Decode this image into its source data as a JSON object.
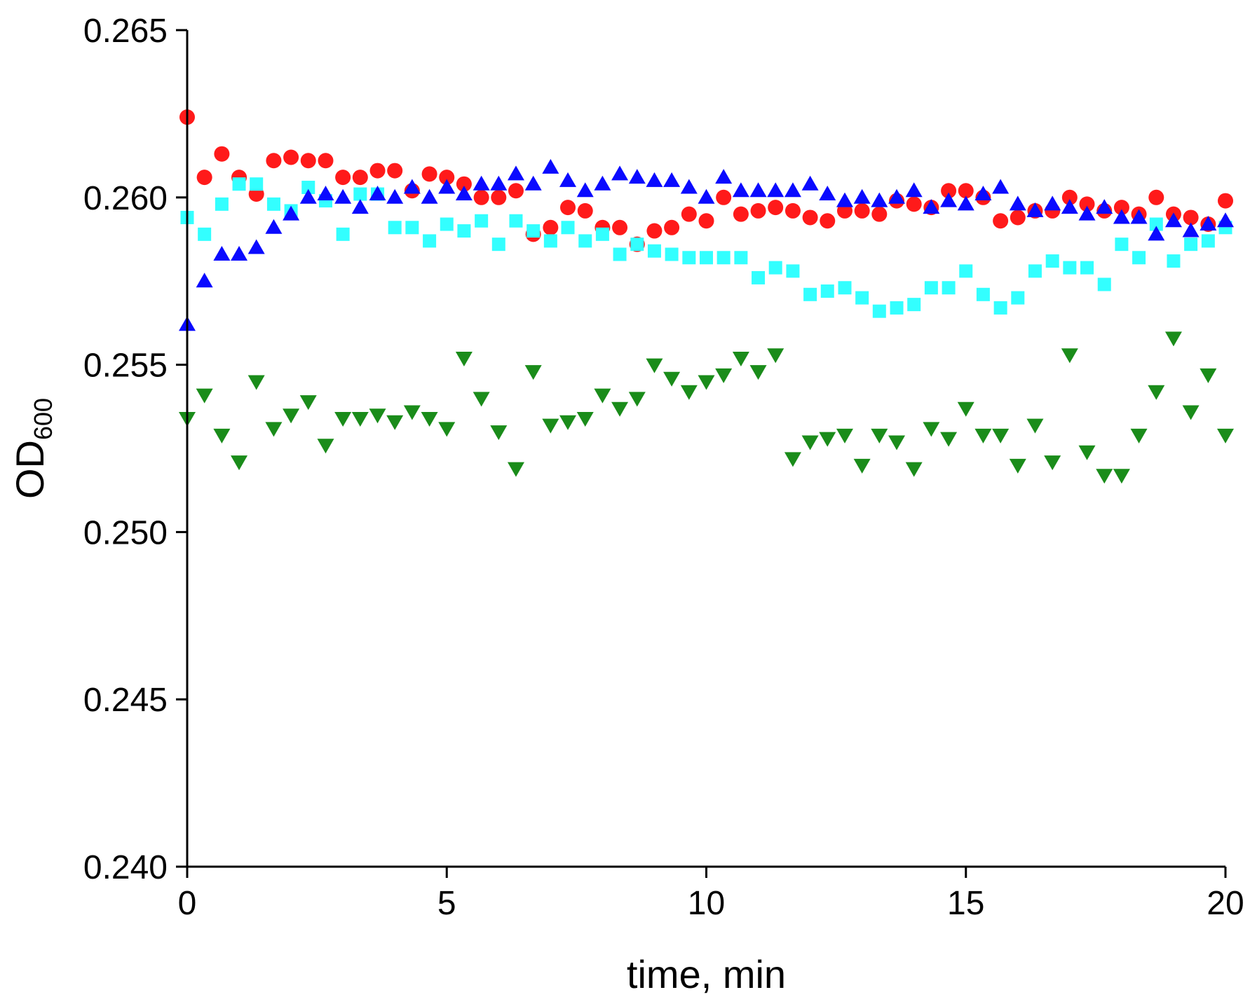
{
  "chart_data": {
    "type": "scatter",
    "title": "",
    "xlabel": "time, min",
    "ylabel": "OD",
    "ylabel_subscript": "600",
    "xlim": [
      0,
      20
    ],
    "ylim": [
      0.24,
      0.265
    ],
    "xticks": [
      0,
      5,
      10,
      15,
      20
    ],
    "xtick_labels": [
      "0",
      "5",
      "10",
      "15",
      "20"
    ],
    "yticks": [
      0.24,
      0.245,
      0.25,
      0.255,
      0.26,
      0.265
    ],
    "ytick_labels": [
      "0.240",
      "0.245",
      "0.250",
      "0.255",
      "0.260",
      "0.265"
    ],
    "grid": false,
    "legend": "none",
    "x": [
      0,
      0.333,
      0.667,
      1,
      1.333,
      1.667,
      2,
      2.333,
      2.667,
      3,
      3.333,
      3.667,
      4,
      4.333,
      4.667,
      5,
      5.333,
      5.667,
      6,
      6.333,
      6.667,
      7,
      7.333,
      7.667,
      8,
      8.333,
      8.667,
      9,
      9.333,
      9.667,
      10,
      10.333,
      10.667,
      11,
      11.333,
      11.667,
      12,
      12.333,
      12.667,
      13,
      13.333,
      13.667,
      14,
      14.333,
      14.667,
      15,
      15.333,
      15.667,
      16,
      16.333,
      16.667,
      17,
      17.333,
      17.667,
      18,
      18.333,
      18.667,
      19,
      19.333,
      19.667,
      20
    ],
    "series": [
      {
        "name": "red circles",
        "marker": "circle",
        "color": "#ff1a1a",
        "values": [
          0.2624,
          0.2606,
          0.2613,
          0.2606,
          0.2601,
          0.2611,
          0.2612,
          0.2611,
          0.2611,
          0.2606,
          0.2606,
          0.2608,
          0.2608,
          0.2602,
          0.2607,
          0.2606,
          0.2604,
          0.26,
          0.26,
          0.2602,
          0.2589,
          0.2591,
          0.2597,
          0.2596,
          0.2591,
          0.2591,
          0.2586,
          0.259,
          0.2591,
          0.2595,
          0.2593,
          0.26,
          0.2595,
          0.2596,
          0.2597,
          0.2596,
          0.2594,
          0.2593,
          0.2596,
          0.2596,
          0.2595,
          0.2599,
          0.2598,
          0.2597,
          0.2602,
          0.2602,
          0.26,
          0.2593,
          0.2594,
          0.2596,
          0.2596,
          0.26,
          0.2598,
          0.2596,
          0.2597,
          0.2595,
          0.26,
          0.2595,
          0.2594,
          0.2592,
          0.2599
        ]
      },
      {
        "name": "cyan squares",
        "marker": "square",
        "color": "#33ffff",
        "values": [
          0.2594,
          0.2589,
          0.2598,
          0.2604,
          0.2604,
          0.2598,
          0.2596,
          0.2603,
          0.2599,
          0.2589,
          0.2601,
          0.2601,
          0.2591,
          0.2591,
          0.2587,
          0.2592,
          0.259,
          0.2593,
          0.2586,
          0.2593,
          0.259,
          0.2587,
          0.2591,
          0.2587,
          0.2589,
          0.2583,
          0.2586,
          0.2584,
          0.2583,
          0.2582,
          0.2582,
          0.2582,
          0.2582,
          0.2576,
          0.2579,
          0.2578,
          0.2571,
          0.2572,
          0.2573,
          0.257,
          0.2566,
          0.2567,
          0.2568,
          0.2573,
          0.2573,
          0.2578,
          0.2571,
          0.2567,
          0.257,
          0.2578,
          0.2581,
          0.2579,
          0.2579,
          0.2574,
          0.2586,
          0.2582,
          0.2592,
          0.2581,
          0.2586,
          0.2587,
          0.2591
        ]
      },
      {
        "name": "blue up-triangles",
        "marker": "triangle-up",
        "color": "#0a0aff",
        "values": [
          0.2562,
          0.2575,
          0.2583,
          0.2583,
          0.2585,
          0.2591,
          0.2595,
          0.26,
          0.2601,
          0.26,
          0.2597,
          0.2601,
          0.26,
          0.2603,
          0.26,
          0.2603,
          0.2601,
          0.2604,
          0.2604,
          0.2607,
          0.2604,
          0.2609,
          0.2605,
          0.2602,
          0.2604,
          0.2607,
          0.2606,
          0.2605,
          0.2605,
          0.2603,
          0.26,
          0.2606,
          0.2602,
          0.2602,
          0.2602,
          0.2602,
          0.2604,
          0.2601,
          0.2599,
          0.26,
          0.2599,
          0.26,
          0.2602,
          0.2597,
          0.2599,
          0.2598,
          0.2601,
          0.2603,
          0.2598,
          0.2596,
          0.2598,
          0.2597,
          0.2595,
          0.2597,
          0.2594,
          0.2594,
          0.2589,
          0.2593,
          0.259,
          0.2592,
          0.2593
        ]
      },
      {
        "name": "green down-triangles",
        "marker": "triangle-down",
        "color": "#1a8c1a",
        "values": [
          0.2534,
          0.2541,
          0.2529,
          0.2521,
          0.2545,
          0.2531,
          0.2535,
          0.2539,
          0.2526,
          0.2534,
          0.2534,
          0.2535,
          0.2533,
          0.2536,
          0.2534,
          0.2531,
          0.2552,
          0.254,
          0.253,
          0.2519,
          0.2548,
          0.2532,
          0.2533,
          0.2534,
          0.2541,
          0.2537,
          0.254,
          0.255,
          0.2546,
          0.2542,
          0.2545,
          0.2547,
          0.2552,
          0.2548,
          0.2553,
          0.2522,
          0.2527,
          0.2528,
          0.2529,
          0.252,
          0.2529,
          0.2527,
          0.2519,
          0.2531,
          0.2528,
          0.2537,
          0.2529,
          0.2529,
          0.252,
          0.2532,
          0.2521,
          0.2553,
          0.2524,
          0.2517,
          0.2517,
          0.2529,
          0.2542,
          0.2558,
          0.2536,
          0.2547,
          0.2529
        ]
      }
    ]
  }
}
